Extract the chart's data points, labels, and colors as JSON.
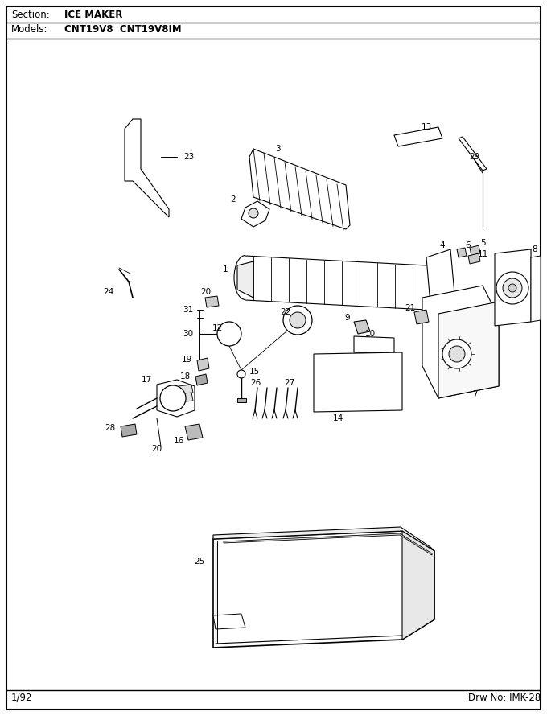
{
  "section_label": "Section:",
  "section_value": "ICE MAKER",
  "models_label": "Models:",
  "models_value": "CNT19V8  CNT19V8IM",
  "footer_left": "1/92",
  "footer_right": "Drw No: IMK-28",
  "bg_color": "#ffffff",
  "border_color": "#000000",
  "fig_width": 6.8,
  "fig_height": 8.9,
  "dpi": 100
}
